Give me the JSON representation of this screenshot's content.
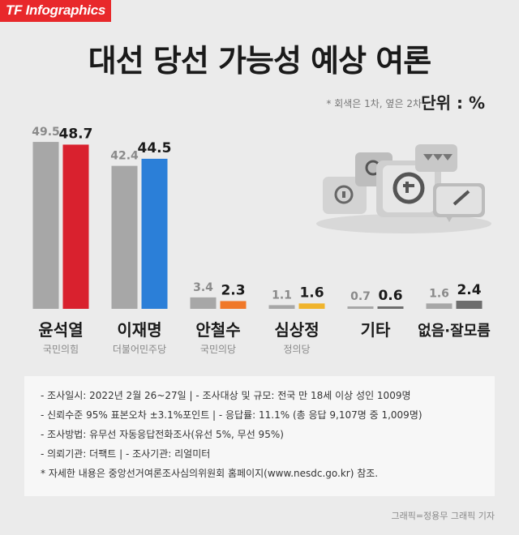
{
  "header": {
    "brand": "TF Infographics",
    "title": "대선 당선 가능성 예상 여론",
    "note": "* 회색은 1차, 옆은 2차",
    "unit": "단위 : %"
  },
  "chart_data": {
    "type": "bar",
    "categories": [
      "윤석열",
      "이재명",
      "안철수",
      "심상정",
      "기타",
      "없음·잘모름"
    ],
    "subcategories": [
      "국민의힘",
      "더불어민주당",
      "국민의당",
      "정의당",
      "",
      ""
    ],
    "series": [
      {
        "values": [
          49.5,
          42.4,
          3.4,
          1.1,
          0.7,
          1.6
        ]
      },
      {
        "values": [
          48.7,
          44.5,
          2.3,
          1.6,
          0.6,
          2.4
        ]
      }
    ],
    "colors": {
      "first": "#a7a7a7",
      "second": [
        "#d9212e",
        "#2b7fd8",
        "#f07828",
        "#f0b42c",
        "#6d6d6d",
        "#6d6d6d"
      ]
    },
    "ylim": [
      0,
      50
    ]
  },
  "info": {
    "lines": [
      "- 조사일시: 2022년 2월 26~27일  |  - 조사대상 및 규모: 전국 만 18세 이상 성인 1009명",
      "- 신뢰수준 95% 표본오차 ±3.1%포인트  |  - 응답률: 11.1% (총 응답 9,107명 중 1,009명)",
      "- 조사방법: 유무선 자동응답전화조사(유선 5%, 무선 95%)",
      "- 의뢰기관: 더팩트  |  - 조사기관: 리얼미터",
      "* 자세한 내용은 중앙선거여론조사심의위원회 홈페이지(www.nesdc.go.kr) 참조."
    ]
  },
  "credit": "그래픽=정용무 그래픽 기자",
  "illustration": {
    "icon": "speech-bubbles-icon"
  }
}
